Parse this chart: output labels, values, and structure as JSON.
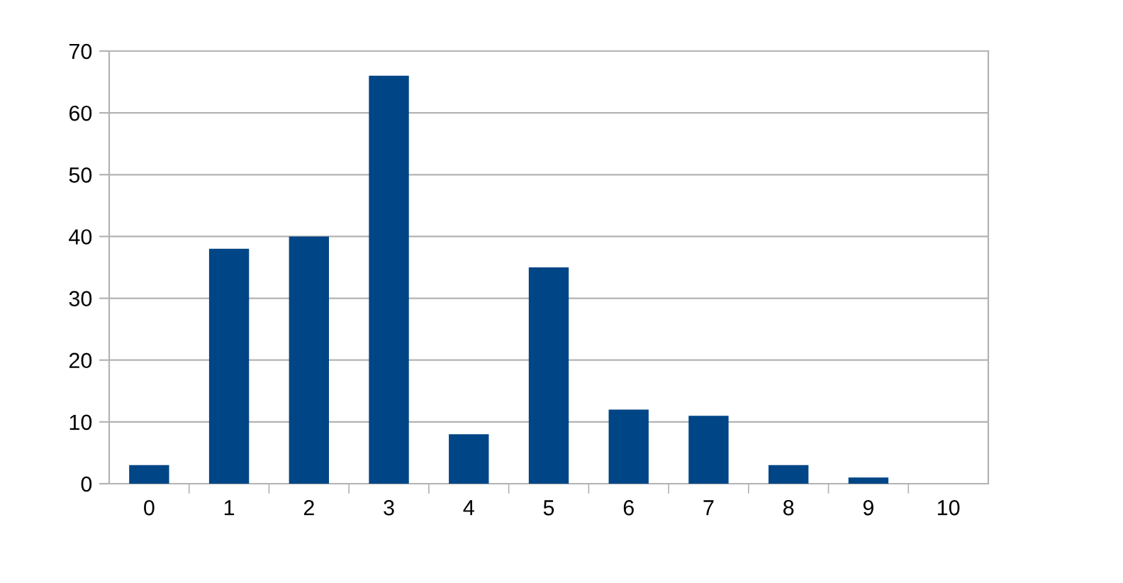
{
  "chart_data": {
    "type": "bar",
    "categories": [
      "0",
      "1",
      "2",
      "3",
      "4",
      "5",
      "6",
      "7",
      "8",
      "9",
      "10"
    ],
    "values": [
      3,
      38,
      40,
      66,
      8,
      35,
      12,
      11,
      3,
      1,
      0
    ],
    "color": "#004586",
    "ylim": [
      0,
      70
    ],
    "yticks": [
      0,
      10,
      20,
      30,
      40,
      50,
      60,
      70
    ],
    "grid": "y",
    "legend": false
  }
}
